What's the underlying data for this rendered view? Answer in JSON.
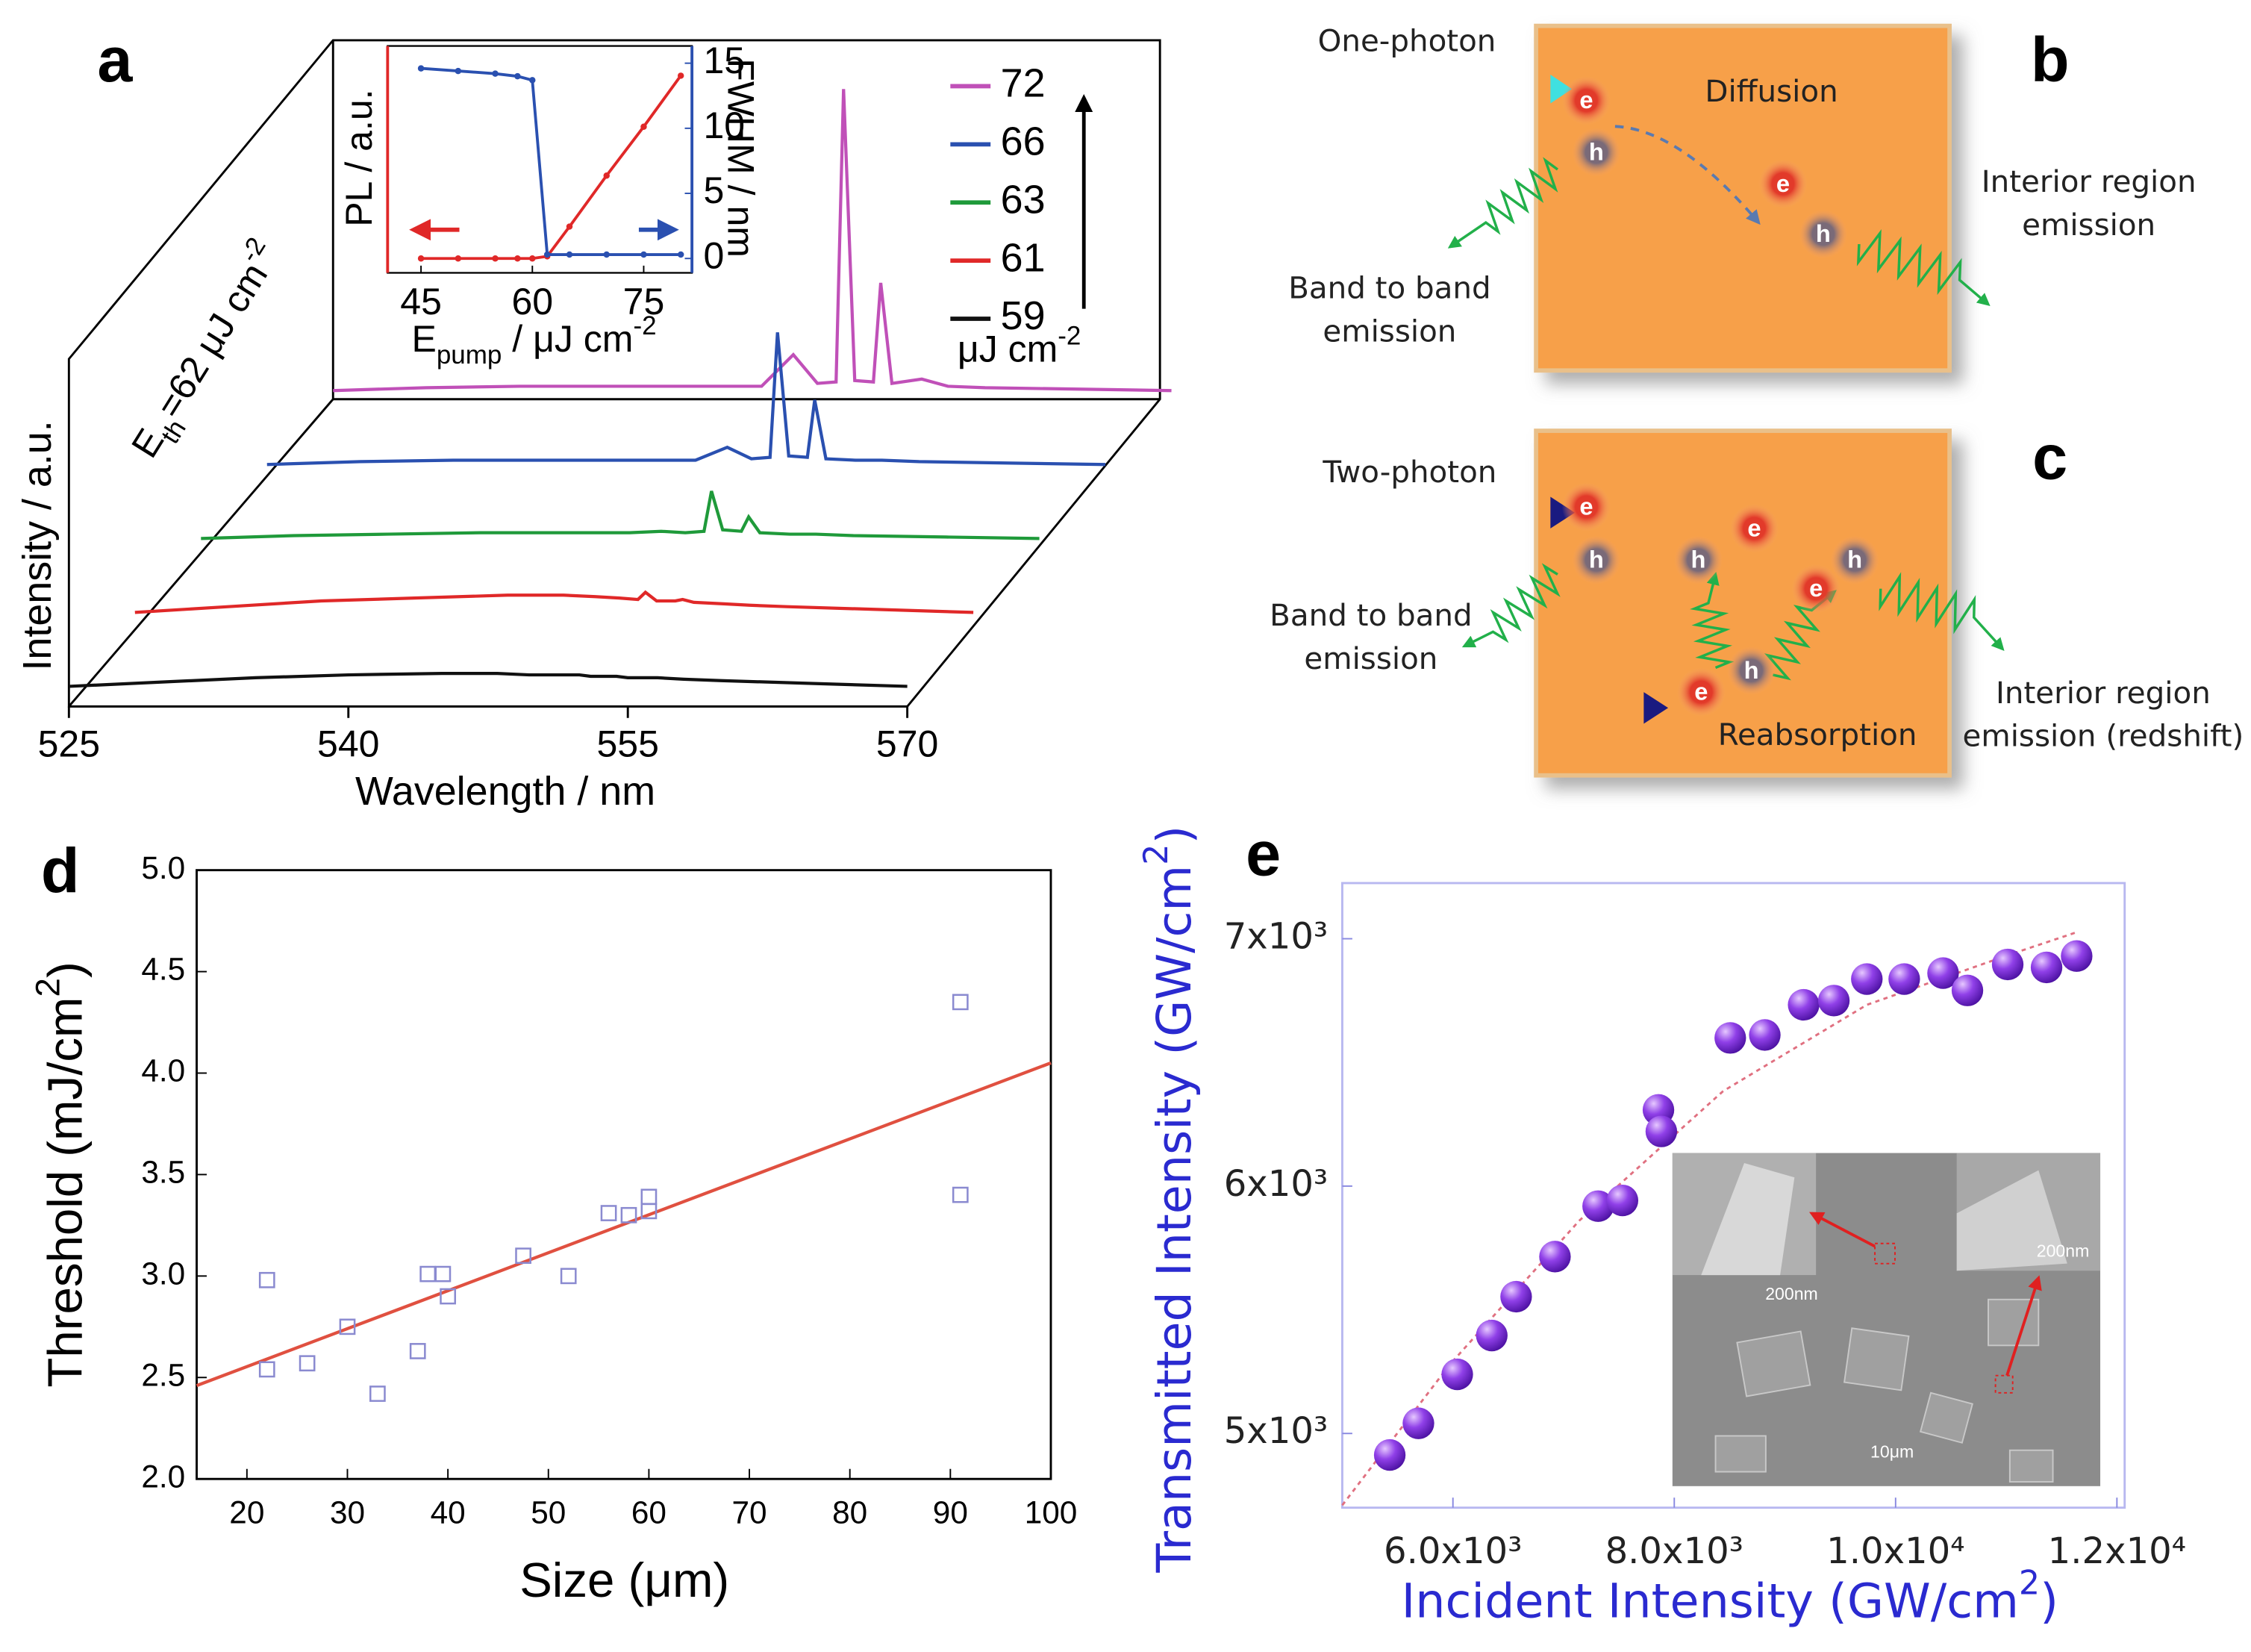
{
  "chart_data": [
    {
      "type": "waterfall",
      "panel_label": "a",
      "x_label": "Wavelength / nm",
      "y_label": "Intensity / a.u.",
      "xlim": [
        525,
        570
      ],
      "xticks": [
        525,
        540,
        555,
        570
      ],
      "ylim": [
        0,
        220
      ],
      "x": [
        525,
        530,
        535,
        540,
        545,
        548,
        549.7,
        551,
        552,
        552.4,
        553,
        554,
        554.4,
        555,
        556.6,
        558,
        560,
        565,
        570
      ],
      "series": [
        {
          "name": "72",
          "color": "#c050b8",
          "values": [
            0,
            2,
            3,
            3,
            3,
            3,
            25,
            5,
            6,
            210,
            7,
            6,
            75,
            5,
            8,
            3,
            2,
            1,
            0
          ]
        },
        {
          "name": "66",
          "color": "#2a50b0",
          "values": [
            0,
            2,
            3,
            3,
            3,
            3,
            12,
            4,
            5,
            92,
            6,
            5,
            45,
            4,
            3,
            3,
            2,
            1,
            0
          ]
        },
        {
          "name": "63",
          "color": "#1f9a3a",
          "values": [
            0,
            2,
            3,
            4,
            4,
            4,
            5,
            4,
            5,
            33,
            6,
            5,
            15,
            4,
            3,
            3,
            2,
            1,
            0
          ]
        },
        {
          "name": "61",
          "color": "#e02828",
          "values": [
            0,
            4,
            8,
            10,
            12,
            12,
            11,
            10,
            9,
            14,
            8,
            8,
            9,
            7,
            6,
            5,
            4,
            2,
            0
          ]
        },
        {
          "name": "59",
          "color": "#111111",
          "values": [
            0,
            3,
            6,
            8,
            9,
            9,
            8,
            8,
            8,
            8,
            7,
            7,
            7,
            6,
            6,
            5,
            4,
            2,
            0
          ]
        }
      ],
      "legend_unit": [
        "μJ cm",
        "-2"
      ],
      "annotation": [
        "E",
        "th",
        "=62 μJ cm",
        "-2"
      ]
    },
    {
      "type": "line",
      "x": [
        45,
        50,
        55,
        58,
        60,
        62,
        65,
        70,
        75,
        80
      ],
      "xlim": [
        40.5,
        81.5
      ],
      "xticks": [
        45,
        60,
        75
      ],
      "ylim": [
        0,
        1
      ],
      "y2lim": [
        0,
        15
      ],
      "y2ticks": [
        0,
        5,
        10,
        15
      ],
      "y_label": "PL / a.u.",
      "y2_label": "FWHM / nm",
      "x_label": [
        "E",
        "pump",
        " / μJ cm",
        "-2"
      ],
      "series": [
        {
          "name": "PL",
          "color": "#e02828",
          "values": [
            0,
            0,
            0,
            0,
            0,
            0.01,
            0.15,
            0.39,
            0.62,
            0.86
          ]
        },
        {
          "name": "FWHM",
          "color": "#2a50b0",
          "axis": "y2",
          "values": [
            14.6,
            14.4,
            14.2,
            14,
            13.7,
            0.3,
            0.3,
            0.3,
            0.3,
            0.3
          ]
        }
      ]
    },
    {
      "type": "scatter",
      "panel_label": "d",
      "x_label": "Size (μm)",
      "y_label": [
        "Threshold (mJ/cm",
        "2",
        ")"
      ],
      "xlim": [
        15,
        100
      ],
      "xticks": [
        20,
        30,
        40,
        50,
        60,
        70,
        80,
        90,
        100
      ],
      "ylim": [
        2,
        5
      ],
      "yticks": [
        {
          "value": 2,
          "label": "2.0"
        },
        2.5,
        {
          "value": 3,
          "label": "3.0"
        },
        3.5,
        {
          "value": 4,
          "label": "4.0"
        },
        4.5,
        {
          "value": 5,
          "label": "5.0"
        }
      ],
      "color": "#8a8ad0",
      "x": [
        22,
        22,
        26,
        30,
        33,
        37,
        38,
        39.5,
        40,
        47.5,
        52,
        56,
        58,
        60,
        60,
        91,
        91
      ],
      "values": [
        2.98,
        2.54,
        2.57,
        2.75,
        2.42,
        2.63,
        3.01,
        3.01,
        2.9,
        3.1,
        3.0,
        3.31,
        3.3,
        3.32,
        3.39,
        4.35,
        3.4
      ],
      "fit_line": {
        "color": "#e05040",
        "x": [
          15,
          100
        ],
        "values": [
          2.46,
          4.05
        ]
      }
    },
    {
      "type": "scatter",
      "panel_label": "e",
      "x_label": [
        "Incident Intensity (GW/cm",
        "2",
        ")"
      ],
      "y_label": [
        "Transmitted Intensity (GW/cm",
        "2",
        ")"
      ],
      "xlim": [
        5000,
        12070
      ],
      "xticks": [
        {
          "value": 6000,
          "label": "6.0x10³"
        },
        {
          "value": 8000,
          "label": "8.0x10³"
        },
        {
          "value": 10000,
          "label": "1.0x10⁴"
        },
        {
          "value": 12000,
          "label": "1.2x10⁴"
        }
      ],
      "ylim": [
        4700,
        7225
      ],
      "yticks": [
        {
          "value": 5000,
          "label": "5x10³"
        },
        {
          "value": 6000,
          "label": "6x10³"
        },
        {
          "value": 7000,
          "label": "7x10³"
        }
      ],
      "color": "#8a2be2",
      "x": [
        5429,
        5688,
        6039,
        6351,
        6571,
        6922,
        7312,
        7532,
        7857,
        7883,
        8506,
        8818,
        9169,
        9442,
        9740,
        10078,
        10429,
        10649,
        11013,
        11364,
        11636
      ],
      "values": [
        4913,
        5041,
        5239,
        5396,
        5553,
        5715,
        5919,
        5942,
        6308,
        6221,
        6599,
        6611,
        6733,
        6750,
        6837,
        6837,
        6861,
        6791,
        6896,
        6884,
        6930
      ],
      "fit_line": {
        "color": "#e07080",
        "x": [
          5000,
          5974,
          7143,
          8442,
          9740,
          11039,
          11623
        ],
        "values": [
          4710,
          5280,
          5861,
          6384,
          6733,
          6937,
          7024
        ]
      },
      "inset_labels": [
        "200nm",
        "200nm",
        "10μm"
      ]
    }
  ],
  "diagrams": [
    {
      "panel_label": "b",
      "texts": [
        "One-photon",
        "Diffusion",
        "Interior region",
        "emission",
        "Band to band",
        "emission"
      ],
      "carriers": [
        "e",
        "h",
        "e",
        "h"
      ]
    },
    {
      "panel_label": "c",
      "texts": [
        "Two-photon",
        "Band to band",
        "emission",
        "Reabsorption",
        "Interior region",
        "emission (redshift)"
      ],
      "carriers": [
        "e",
        "h",
        "h",
        "e",
        "h",
        "e",
        "h",
        "e"
      ]
    }
  ]
}
